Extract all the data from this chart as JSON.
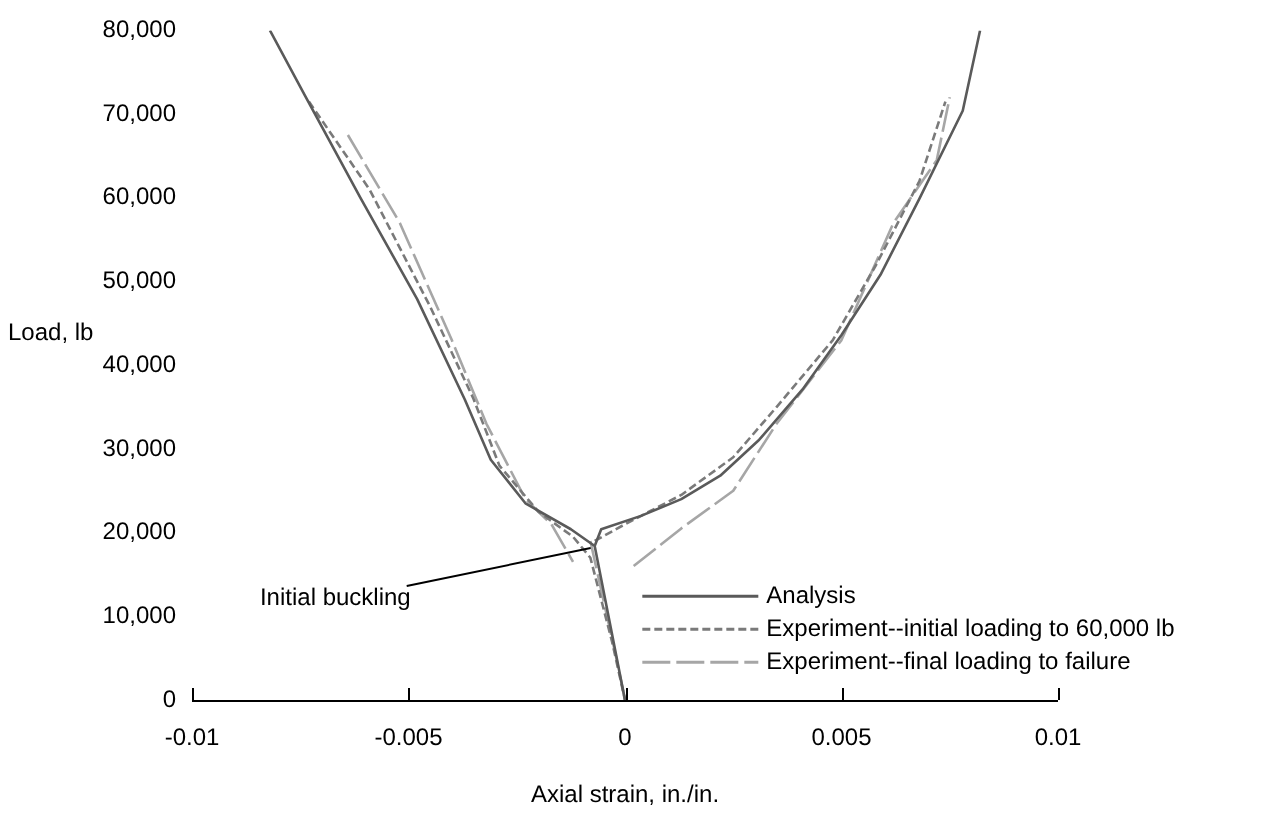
{
  "chart_data": {
    "type": "line",
    "xlabel": "Axial strain, in./in.",
    "ylabel": "Load, lb",
    "xlim": [
      -0.01,
      0.01
    ],
    "xticks": [
      -0.01,
      -0.005,
      0,
      0.005,
      0.01
    ],
    "ylim": [
      0,
      80000
    ],
    "yticks": [
      0,
      {
        "value": 10000,
        "label": "10,000"
      },
      {
        "value": 20000,
        "label": "20,000"
      },
      {
        "value": 30000,
        "label": "30,000"
      },
      {
        "value": 40000,
        "label": "40,000"
      },
      {
        "value": 50000,
        "label": "50,000"
      },
      {
        "value": 60000,
        "label": "60,000"
      },
      {
        "value": 70000,
        "label": "70,000"
      },
      {
        "value": 80000,
        "label": "80,000"
      }
    ],
    "grid": false,
    "legend": "bottom right",
    "marker": "none",
    "annotations": [
      {
        "text": "Initial buckling",
        "x": -0.0007,
        "y": 18400
      }
    ],
    "series": [
      {
        "name": "Analysis",
        "color": "#5a5a5a",
        "line_style": "solid",
        "x": [
          -0.0082,
          -0.0074,
          -0.0061,
          -0.0048,
          -0.0037,
          -0.0031,
          -0.0023,
          -0.00125,
          -0.0007,
          0,
          null,
          -0.0007,
          -0.00055,
          0.00037,
          0.0013,
          0.0022,
          0.0031,
          0.0041,
          0.005,
          0.0059,
          0.0068,
          0.0078,
          0.0082
        ],
        "values": [
          80000,
          72300,
          59900,
          47900,
          35900,
          28700,
          23500,
          20400,
          18400,
          0,
          null,
          18400,
          20400,
          22000,
          24000,
          26800,
          31100,
          37100,
          43600,
          50800,
          59900,
          70400,
          80000
        ]
      },
      {
        "name": "Experiment--initial loading to 60,000 lb",
        "color": "#7a7a7a",
        "line_style": "dotted",
        "x": [
          -0.0073,
          -0.0059,
          -0.0045,
          -0.0035,
          -0.0029,
          -0.002,
          -0.0012,
          -0.0008,
          -0.0003,
          0,
          null,
          -0.0007,
          0,
          0.0013,
          0.0025,
          0.0035,
          0.0048,
          0.0058,
          0.0068,
          0.0074
        ],
        "values": [
          71500,
          61000,
          47000,
          36000,
          28000,
          22500,
          19500,
          17000,
          7000,
          0,
          null,
          19000,
          21000,
          24500,
          29000,
          35000,
          43000,
          52000,
          62000,
          71500
        ]
      },
      {
        "name": "Experiment--final loading to failure",
        "color": "#a6a6a6",
        "line_style": "dashed",
        "x": [
          -0.0064,
          -0.0052,
          -0.004,
          -0.0032,
          -0.0023,
          -0.0017,
          -0.0012,
          null,
          -0.0008,
          -0.0002,
          0,
          null,
          0.0002,
          0.0013,
          0.0025,
          0.0035,
          0.005,
          0.0062,
          0.0072,
          0.0075
        ],
        "values": [
          67500,
          57000,
          43000,
          33000,
          24000,
          21000,
          16500,
          null,
          19000,
          5000,
          0,
          null,
          16000,
          20500,
          25000,
          33000,
          43000,
          57000,
          64500,
          72000
        ]
      }
    ]
  }
}
